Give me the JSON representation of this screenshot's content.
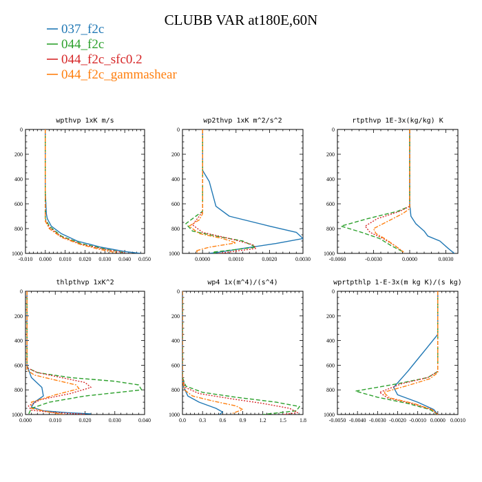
{
  "title": "CLUBB VAR at180E,60N",
  "legend": [
    {
      "name": "037_f2c",
      "color": "#1f77b4",
      "dash": "solid"
    },
    {
      "name": "044_f2c",
      "color": "#2ca02c",
      "dash": "dashed"
    },
    {
      "name": "044_f2c_sfc0.2",
      "color": "#d62728",
      "dash": "dotted"
    },
    {
      "name": "044_f2c_gammashear",
      "color": "#ff7f0e",
      "dash": "dashdot"
    }
  ],
  "chart_data": [
    {
      "type": "line",
      "title": "wpthvp  1xK m/s",
      "xlim": [
        -0.01,
        0.05
      ],
      "ylim": [
        1000,
        0
      ],
      "xticks": [
        "-0.010",
        "0.000",
        "0.010",
        "0.020",
        "0.030",
        "0.040",
        "0.050"
      ],
      "xtick_values": [
        -0.01,
        0.0,
        0.01,
        0.02,
        0.03,
        0.04,
        0.05
      ],
      "yticks": [
        "0",
        "200",
        "400",
        "600",
        "800",
        "1000"
      ],
      "series": [
        {
          "name": "037_f2c",
          "x": [
            0.0,
            0.0,
            0.0005,
            0.001,
            0.003,
            0.008,
            0.016,
            0.028,
            0.04,
            0.048
          ],
          "y": [
            0,
            500,
            680,
            720,
            780,
            840,
            900,
            950,
            985,
            1000
          ]
        },
        {
          "name": "044_f2c",
          "x": [
            0.0,
            0.0,
            0.0,
            0.002,
            0.008,
            0.018,
            0.03,
            0.04
          ],
          "y": [
            0,
            500,
            720,
            780,
            860,
            920,
            965,
            995
          ]
        },
        {
          "name": "044_f2c_sfc0.2",
          "x": [
            0.0,
            0.0,
            0.0,
            0.002,
            0.008,
            0.018,
            0.03,
            0.04
          ],
          "y": [
            0,
            500,
            730,
            790,
            865,
            925,
            968,
            995
          ]
        },
        {
          "name": "044_f2c_gammashear",
          "x": [
            0.0,
            0.0,
            0.0,
            0.002,
            0.008,
            0.018,
            0.028,
            0.036
          ],
          "y": [
            0,
            500,
            740,
            800,
            870,
            930,
            970,
            995
          ]
        }
      ]
    },
    {
      "type": "line",
      "title": "wp2thvp  1xK m^2/s^2",
      "xlim": [
        -0.0006,
        0.003
      ],
      "ylim": [
        1000,
        0
      ],
      "xticks": [
        "0.0000",
        "0.0010",
        "0.0020",
        "0.0030"
      ],
      "xtick_values": [
        0.0,
        0.001,
        0.002,
        0.003
      ],
      "yticks": [
        "0",
        "200",
        "400",
        "600",
        "800",
        "1000"
      ],
      "series": [
        {
          "name": "037_f2c",
          "x": [
            0.0,
            0.0,
            0.0002,
            0.0004,
            0.0008,
            0.002,
            0.0028,
            0.003,
            0.0022,
            0.0012,
            0.0005,
            0.0002
          ],
          "y": [
            0,
            330,
            420,
            620,
            700,
            780,
            830,
            880,
            920,
            960,
            990,
            1000
          ]
        },
        {
          "name": "044_f2c",
          "x": [
            0.0,
            0.0,
            -0.0002,
            -0.0005,
            -0.0003,
            0.0004,
            0.0012,
            0.0016,
            0.0008,
            0.0003,
            0.0004
          ],
          "y": [
            0,
            660,
            700,
            760,
            820,
            860,
            900,
            950,
            975,
            990,
            1000
          ]
        },
        {
          "name": "044_f2c_sfc0.2",
          "x": [
            0.0,
            0.0,
            -0.0001,
            -0.0003,
            0.0,
            0.0008,
            0.0015,
            0.0016,
            0.0009,
            0.0005
          ],
          "y": [
            0,
            660,
            700,
            770,
            830,
            880,
            930,
            960,
            985,
            1000
          ]
        },
        {
          "name": "044_f2c_gammashear",
          "x": [
            0.0,
            0.0,
            -0.0001,
            -0.0004,
            -0.0001,
            0.0006,
            0.001,
            0.0002,
            -0.0002,
            -0.0001
          ],
          "y": [
            0,
            680,
            730,
            780,
            840,
            880,
            915,
            950,
            980,
            1000
          ]
        }
      ]
    },
    {
      "type": "line",
      "title": "rtpthvp  1E-3x(kg/kg) K",
      "xlim": [
        -0.006,
        0.004
      ],
      "ylim": [
        1000,
        0
      ],
      "xticks": [
        "-0.0060",
        "-0.0030",
        "0.0000",
        "0.0030"
      ],
      "xtick_values": [
        -0.006,
        -0.003,
        0.0,
        0.003
      ],
      "yticks": [
        "0",
        "200",
        "400",
        "600",
        "800",
        "1000"
      ],
      "series": [
        {
          "name": "037_f2c",
          "x": [
            0.0,
            0.0,
            0.0001,
            0.0005,
            0.0012,
            0.0015,
            0.0025,
            0.0032,
            0.0037
          ],
          "y": [
            0,
            600,
            700,
            760,
            820,
            860,
            900,
            960,
            1000
          ]
        },
        {
          "name": "044_f2c",
          "x": [
            0.0,
            0.0,
            -0.001,
            -0.0035,
            -0.0057,
            -0.004,
            -0.0025,
            -0.0015,
            -0.0005
          ],
          "y": [
            0,
            620,
            660,
            720,
            780,
            830,
            880,
            940,
            990
          ]
        },
        {
          "name": "044_f2c_sfc0.2",
          "x": [
            0.0,
            0.0,
            -0.0008,
            -0.0027,
            -0.0037,
            -0.0033,
            -0.0022,
            -0.0012,
            -0.0005
          ],
          "y": [
            0,
            620,
            660,
            720,
            780,
            830,
            880,
            940,
            990
          ]
        },
        {
          "name": "044_f2c_gammashear",
          "x": [
            0.0,
            0.0,
            -0.0006,
            -0.0018,
            -0.003,
            -0.0028,
            -0.002,
            -0.0012,
            -0.0005
          ],
          "y": [
            0,
            640,
            680,
            740,
            800,
            840,
            885,
            940,
            990
          ]
        }
      ]
    },
    {
      "type": "line",
      "title": "thlpthvp  1xK^2",
      "xlim": [
        0.0,
        0.04
      ],
      "ylim": [
        1000,
        0
      ],
      "xticks": [
        "0.000",
        "0.010",
        "0.020",
        "0.030",
        "0.040"
      ],
      "xtick_values": [
        0.0,
        0.01,
        0.02,
        0.03,
        0.04
      ],
      "yticks": [
        "0",
        "200",
        "400",
        "600",
        "800",
        "1000"
      ],
      "series": [
        {
          "name": "037_f2c",
          "x": [
            0.0005,
            0.0005,
            0.002,
            0.0055,
            0.006,
            0.003,
            0.002,
            0.006,
            0.014,
            0.022
          ],
          "y": [
            0,
            600,
            700,
            780,
            850,
            900,
            940,
            970,
            985,
            995
          ]
        },
        {
          "name": "044_f2c",
          "x": [
            0.0005,
            0.0005,
            0.004,
            0.015,
            0.03,
            0.038,
            0.039,
            0.02,
            0.008,
            0.002,
            0.001
          ],
          "y": [
            0,
            620,
            660,
            700,
            730,
            760,
            800,
            850,
            900,
            950,
            1000
          ]
        },
        {
          "name": "044_f2c_sfc0.2",
          "x": [
            0.0005,
            0.0005,
            0.004,
            0.012,
            0.02,
            0.022,
            0.015,
            0.005,
            0.001,
            0.002,
            0.01,
            0.02
          ],
          "y": [
            0,
            620,
            660,
            700,
            740,
            780,
            830,
            880,
            930,
            965,
            985,
            998
          ]
        },
        {
          "name": "044_f2c_gammashear",
          "x": [
            0.0005,
            0.0005,
            0.003,
            0.01,
            0.017,
            0.018,
            0.01,
            0.002,
            0.002,
            0.008,
            0.013
          ],
          "y": [
            0,
            640,
            680,
            720,
            760,
            790,
            840,
            900,
            950,
            980,
            1000
          ]
        }
      ]
    },
    {
      "type": "line",
      "title": "wp4  1x(m^4)/(s^4)",
      "xlim": [
        0.0,
        1.8
      ],
      "ylim": [
        1000,
        0
      ],
      "xticks": [
        "0.0",
        "0.3",
        "0.6",
        "0.9",
        "1.2",
        "1.5",
        "1.8"
      ],
      "xtick_values": [
        0.0,
        0.3,
        0.6,
        0.9,
        1.2,
        1.5,
        1.8
      ],
      "yticks": [
        "0",
        "200",
        "400",
        "600",
        "800",
        "1000"
      ],
      "series": [
        {
          "name": "037_f2c",
          "x": [
            0.0,
            0.0,
            0.02,
            0.08,
            0.25,
            0.5,
            0.6,
            0.55
          ],
          "y": [
            0,
            700,
            780,
            850,
            900,
            950,
            980,
            1000
          ]
        },
        {
          "name": "044_f2c",
          "x": [
            0.0,
            0.0,
            0.05,
            0.3,
            0.8,
            1.4,
            1.75,
            1.7,
            1.2
          ],
          "y": [
            0,
            700,
            770,
            820,
            860,
            900,
            935,
            970,
            1000
          ]
        },
        {
          "name": "044_f2c_sfc0.2",
          "x": [
            0.0,
            0.0,
            0.04,
            0.25,
            0.7,
            1.2,
            1.6,
            1.72,
            1.5
          ],
          "y": [
            0,
            700,
            780,
            830,
            870,
            910,
            950,
            985,
            1000
          ]
        },
        {
          "name": "044_f2c_gammashear",
          "x": [
            0.0,
            0.0,
            0.03,
            0.15,
            0.45,
            0.8,
            0.9,
            0.75
          ],
          "y": [
            0,
            720,
            800,
            850,
            890,
            930,
            960,
            990
          ]
        }
      ]
    },
    {
      "type": "line",
      "title": "wprtpthlp  1-E-3x(m kg K)/(s kg)",
      "xlim": [
        -0.005,
        0.001
      ],
      "ylim": [
        1000,
        0
      ],
      "xticks": [
        "-0.0050",
        "-0.0040",
        "-0.0030",
        "-0.0020",
        "-0.0010",
        "0.0000",
        "0.0010"
      ],
      "xtick_values": [
        -0.005,
        -0.004,
        -0.003,
        -0.002,
        -0.001,
        0.0,
        0.001
      ],
      "yticks": [
        "0",
        "200",
        "400",
        "600",
        "800",
        "1000"
      ],
      "series": [
        {
          "name": "037_f2c",
          "x": [
            0.0,
            0.0,
            -0.0005,
            -0.001,
            -0.0015,
            -0.0022,
            -0.002,
            -0.001,
            -0.0002,
            0.0
          ],
          "y": [
            0,
            350,
            450,
            550,
            650,
            780,
            840,
            900,
            960,
            1000
          ]
        },
        {
          "name": "044_f2c",
          "x": [
            0.0,
            0.0,
            -0.0005,
            -0.002,
            -0.0041,
            -0.003,
            -0.0015,
            -0.0004,
            0.0
          ],
          "y": [
            0,
            650,
            700,
            750,
            810,
            860,
            910,
            960,
            1000
          ]
        },
        {
          "name": "044_f2c_sfc0.2",
          "x": [
            0.0,
            0.0,
            -0.0005,
            -0.0018,
            -0.0029,
            -0.0025,
            -0.0013,
            -0.0003,
            0.0
          ],
          "y": [
            0,
            650,
            700,
            750,
            820,
            865,
            910,
            960,
            1000
          ]
        },
        {
          "name": "044_f2c_gammashear",
          "x": [
            0.0,
            0.0,
            -0.0004,
            -0.0014,
            -0.0027,
            -0.0024,
            -0.0012,
            -0.0003,
            0.0
          ],
          "y": [
            0,
            660,
            710,
            760,
            820,
            865,
            910,
            960,
            1000
          ]
        }
      ]
    }
  ]
}
